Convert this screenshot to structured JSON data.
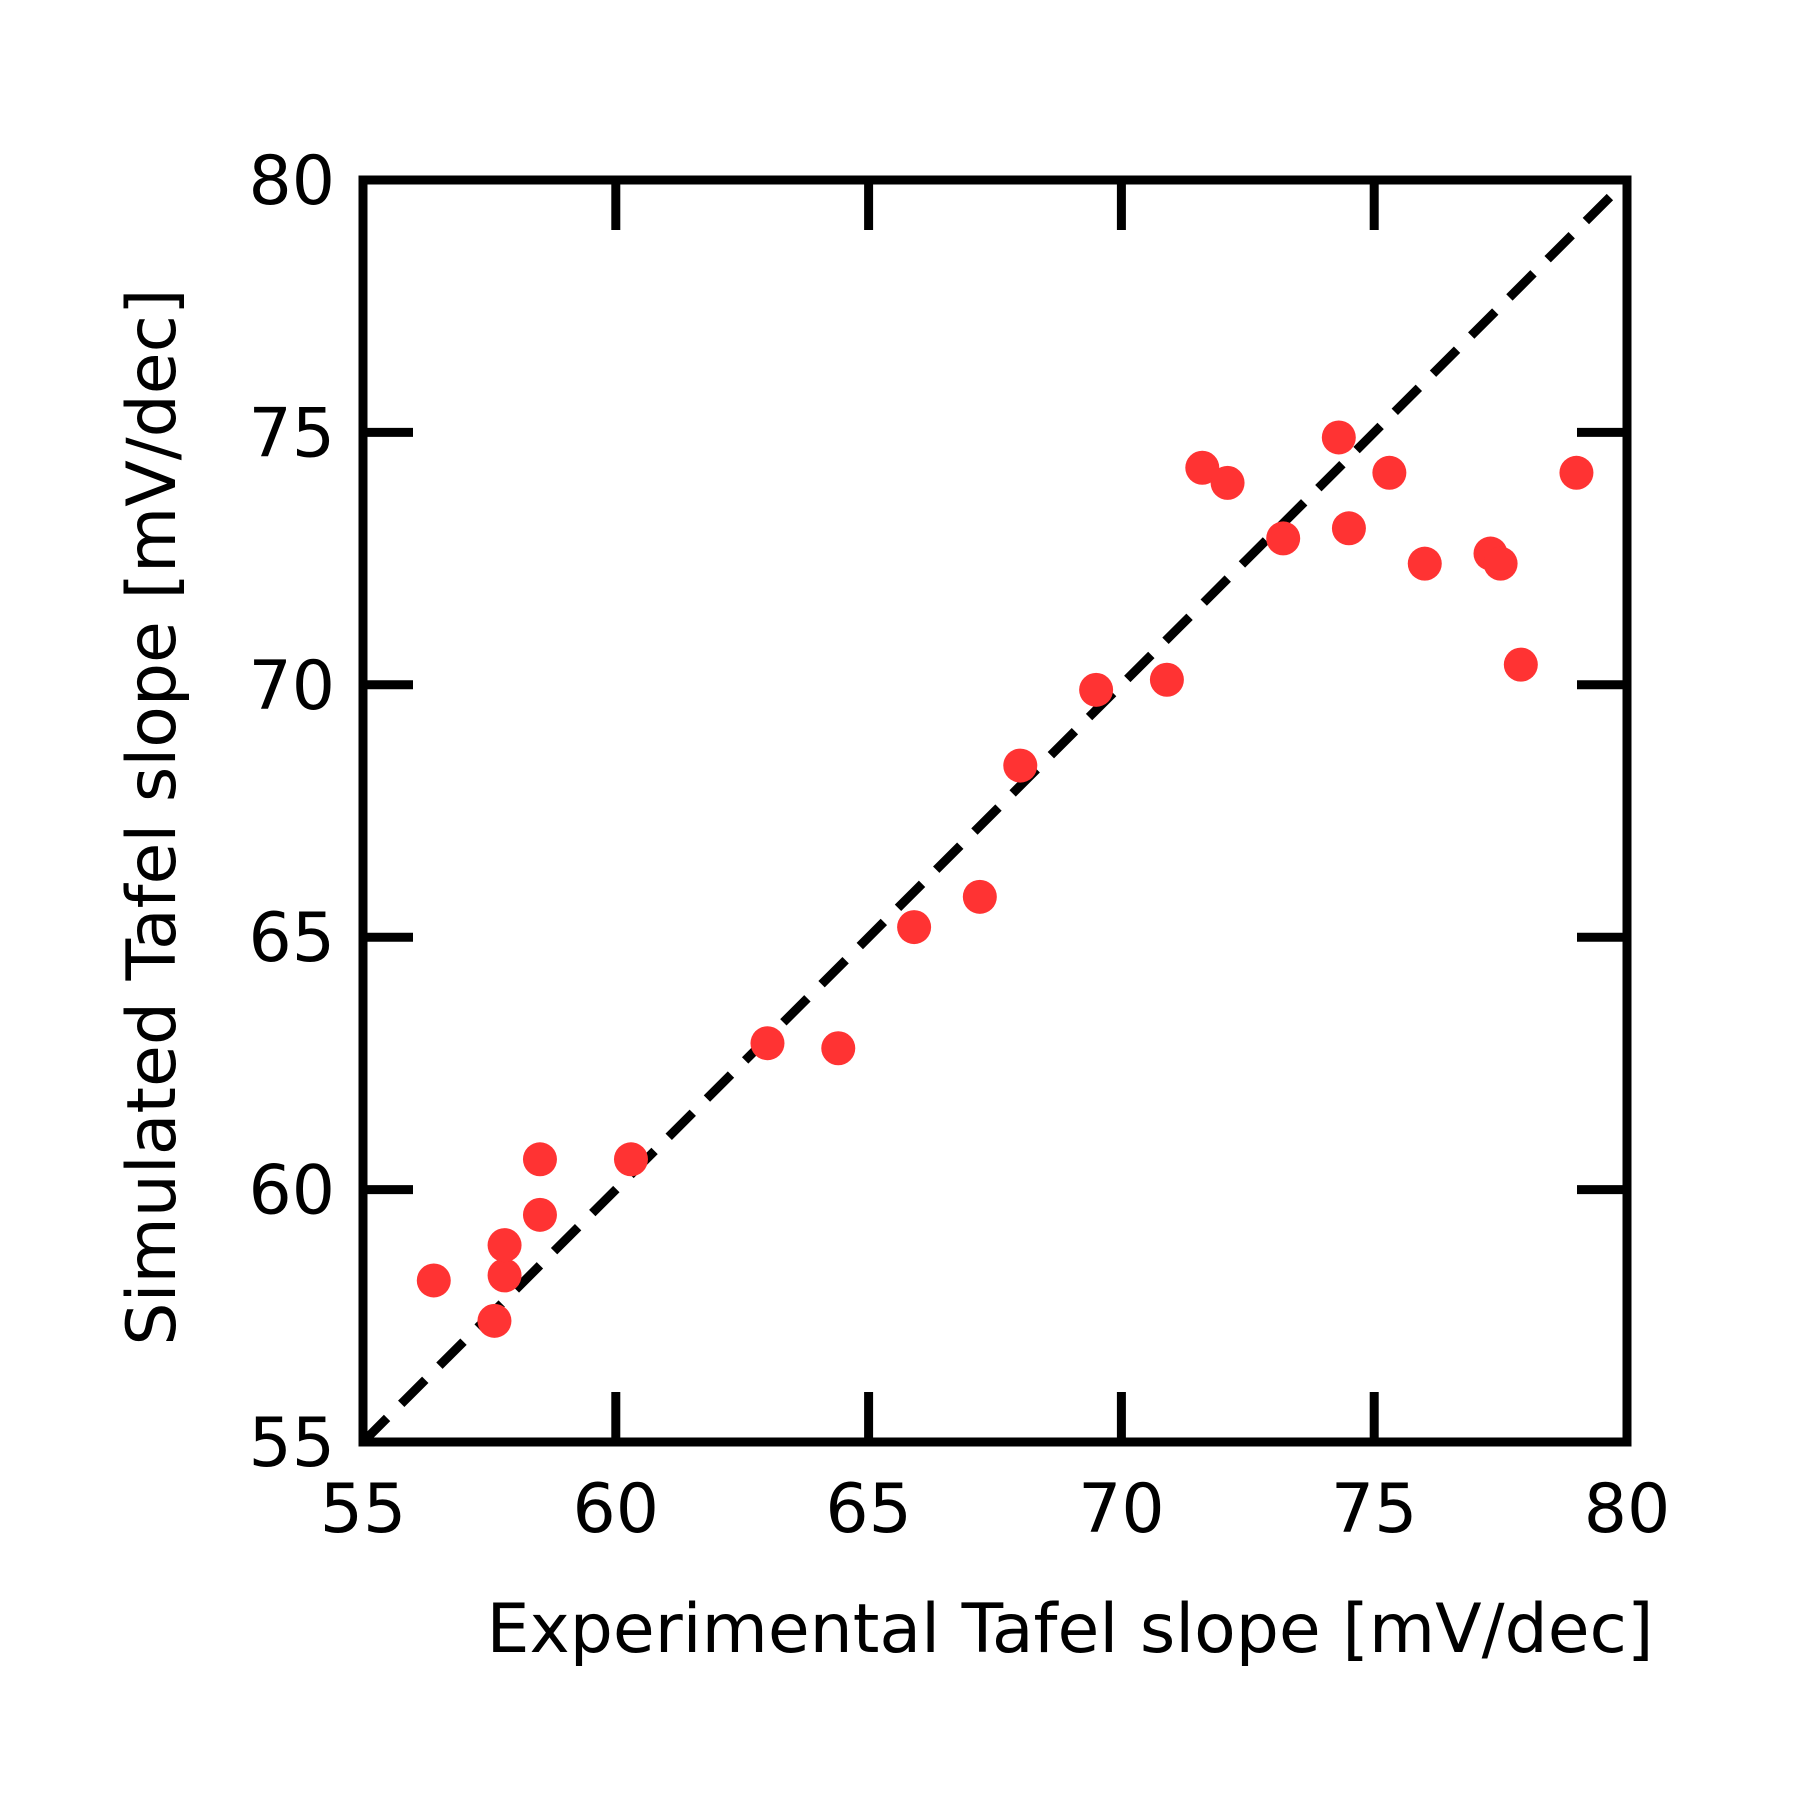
{
  "chart_data": {
    "type": "scatter",
    "title": "",
    "xlabel": "Experimental Tafel slope [mV/dec]",
    "ylabel": "Simulated Tafel slope [mV/dec]",
    "xlim": [
      55,
      80
    ],
    "ylim": [
      55,
      80
    ],
    "xticks": [
      55,
      60,
      65,
      70,
      75,
      80
    ],
    "yticks": [
      55,
      60,
      65,
      70,
      75,
      80
    ],
    "xtick_labels": [
      "55",
      "60",
      "65",
      "70",
      "75",
      "80"
    ],
    "ytick_labels": [
      "55",
      "60",
      "65",
      "70",
      "75",
      "80"
    ],
    "grid": false,
    "reference_line": {
      "style": "dashed",
      "color": "#000000",
      "from": [
        55,
        55
      ],
      "to": [
        80,
        80
      ]
    },
    "series": [
      {
        "color": "#ff3333",
        "points": [
          [
            56.4,
            58.2
          ],
          [
            57.6,
            57.4
          ],
          [
            57.8,
            58.3
          ],
          [
            57.8,
            58.9
          ],
          [
            58.5,
            59.5
          ],
          [
            58.5,
            60.6
          ],
          [
            60.3,
            60.6
          ],
          [
            63.0,
            62.9
          ],
          [
            64.4,
            62.8
          ],
          [
            65.9,
            65.2
          ],
          [
            67.2,
            65.8
          ],
          [
            68.0,
            68.4
          ],
          [
            69.5,
            69.9
          ],
          [
            70.9,
            70.1
          ],
          [
            71.6,
            74.3
          ],
          [
            72.1,
            74.0
          ],
          [
            73.2,
            72.9
          ],
          [
            74.3,
            74.9
          ],
          [
            74.5,
            73.1
          ],
          [
            75.3,
            74.2
          ],
          [
            76.0,
            72.4
          ],
          [
            77.3,
            72.6
          ],
          [
            77.5,
            72.4
          ],
          [
            77.9,
            70.4
          ],
          [
            79.0,
            74.2
          ]
        ]
      }
    ]
  }
}
